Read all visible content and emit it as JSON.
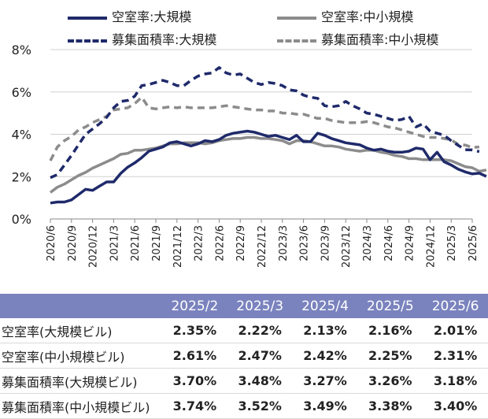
{
  "legend": [
    {
      "label": "空室率:大規模",
      "style": "sw-solid-navy"
    },
    {
      "label": "空室率:中小規模",
      "style": "sw-solid-gray"
    },
    {
      "label": "募集面積率:大規模",
      "style": "sw-dash-navy"
    },
    {
      "label": "募集面積率:中小規模",
      "style": "sw-dash-gray"
    }
  ],
  "chart_data": {
    "type": "line",
    "ylim": [
      0,
      8
    ],
    "yticks": [
      "0%",
      "2%",
      "4%",
      "6%",
      "8%"
    ],
    "xtick_labels": [
      "2020/6",
      "2020/9",
      "2020/12",
      "2021/3",
      "2021/6",
      "2021/9",
      "2021/12",
      "2022/3",
      "2022/6",
      "2022/9",
      "2022/12",
      "2023/3",
      "2023/6",
      "2023/9",
      "2023/12",
      "2024/3",
      "2024/6",
      "2024/9",
      "2024/12",
      "2025/3",
      "2025/6"
    ],
    "series": [
      {
        "name": "空室率:大規模",
        "color": "#1f2a6b",
        "dash": false,
        "values": [
          0.75,
          0.8,
          0.8,
          0.9,
          1.15,
          1.4,
          1.35,
          1.55,
          1.75,
          1.75,
          2.15,
          2.45,
          2.65,
          2.9,
          3.2,
          3.3,
          3.4,
          3.6,
          3.65,
          3.55,
          3.45,
          3.55,
          3.7,
          3.65,
          3.75,
          3.95,
          4.05,
          4.1,
          4.15,
          4.1,
          4.0,
          3.9,
          3.95,
          3.85,
          3.75,
          3.95,
          3.65,
          3.65,
          4.05,
          3.95,
          3.8,
          3.7,
          3.6,
          3.55,
          3.5,
          3.35,
          3.25,
          3.3,
          3.2,
          3.15,
          3.15,
          3.2,
          3.35,
          3.3,
          2.8,
          3.15,
          2.7,
          2.55,
          2.35,
          2.22,
          2.13,
          2.16,
          2.01
        ]
      },
      {
        "name": "空室率:中小規模",
        "color": "#8c8c8c",
        "dash": false,
        "values": [
          1.25,
          1.5,
          1.65,
          1.85,
          2.05,
          2.2,
          2.4,
          2.55,
          2.7,
          2.85,
          3.05,
          3.1,
          3.25,
          3.25,
          3.3,
          3.35,
          3.45,
          3.55,
          3.55,
          3.6,
          3.6,
          3.6,
          3.55,
          3.6,
          3.7,
          3.75,
          3.8,
          3.8,
          3.85,
          3.85,
          3.8,
          3.8,
          3.75,
          3.7,
          3.55,
          3.7,
          3.7,
          3.65,
          3.55,
          3.45,
          3.45,
          3.4,
          3.3,
          3.25,
          3.2,
          3.25,
          3.25,
          3.15,
          3.1,
          3.0,
          2.95,
          2.85,
          2.85,
          2.8,
          2.8,
          2.8,
          2.8,
          2.75,
          2.61,
          2.47,
          2.42,
          2.25,
          2.31
        ]
      },
      {
        "name": "募集面積率:大規模",
        "color": "#1f2a6b",
        "dash": true,
        "values": [
          1.95,
          2.1,
          2.55,
          3.0,
          3.5,
          4.0,
          4.25,
          4.5,
          4.8,
          5.25,
          5.55,
          5.6,
          5.8,
          6.3,
          6.35,
          6.45,
          6.55,
          6.45,
          6.3,
          6.3,
          6.55,
          6.75,
          6.85,
          6.9,
          7.15,
          6.9,
          6.8,
          6.85,
          6.65,
          6.45,
          6.35,
          6.45,
          6.4,
          6.3,
          6.1,
          6.05,
          5.85,
          5.75,
          5.7,
          5.35,
          5.3,
          5.35,
          5.55,
          5.35,
          5.2,
          5.0,
          4.95,
          4.85,
          4.75,
          4.65,
          4.7,
          4.85,
          4.35,
          4.5,
          4.15,
          4.05,
          3.95,
          3.7,
          3.48,
          3.27,
          3.26,
          3.18
        ]
      },
      {
        "name": "募集面積率:中小規模",
        "color": "#8c8c8c",
        "dash": true,
        "values": [
          2.75,
          3.4,
          3.7,
          3.9,
          4.2,
          4.35,
          4.55,
          4.7,
          4.85,
          5.15,
          5.2,
          5.25,
          5.45,
          5.75,
          5.25,
          5.2,
          5.25,
          5.3,
          5.25,
          5.3,
          5.25,
          5.25,
          5.25,
          5.25,
          5.3,
          5.35,
          5.3,
          5.25,
          5.2,
          5.15,
          5.15,
          5.1,
          5.1,
          5.0,
          5.0,
          4.95,
          4.95,
          4.85,
          4.75,
          4.75,
          4.65,
          4.6,
          4.55,
          4.55,
          4.55,
          4.6,
          4.55,
          4.45,
          4.35,
          4.3,
          4.2,
          4.1,
          4.0,
          3.9,
          3.85,
          3.85,
          3.8,
          3.74,
          3.52,
          3.49,
          3.38,
          3.4
        ]
      }
    ]
  },
  "table": {
    "columns": [
      "",
      "2025/2",
      "2025/3",
      "2025/4",
      "2025/5",
      "2025/6"
    ],
    "rows": [
      {
        "label": "空室率(大規模ビル)",
        "values": [
          "2.35%",
          "2.22%",
          "2.13%",
          "2.16%",
          "2.01%"
        ]
      },
      {
        "label": "空室率(中小規模ビル)",
        "values": [
          "2.61%",
          "2.47%",
          "2.42%",
          "2.25%",
          "2.31%"
        ]
      },
      {
        "label": "募集面積率(大規模ビル)",
        "values": [
          "3.70%",
          "3.48%",
          "3.27%",
          "3.26%",
          "3.18%"
        ]
      },
      {
        "label": "募集面積率(中小規模ビル)",
        "values": [
          "3.74%",
          "3.52%",
          "3.49%",
          "3.38%",
          "3.40%"
        ]
      }
    ]
  }
}
